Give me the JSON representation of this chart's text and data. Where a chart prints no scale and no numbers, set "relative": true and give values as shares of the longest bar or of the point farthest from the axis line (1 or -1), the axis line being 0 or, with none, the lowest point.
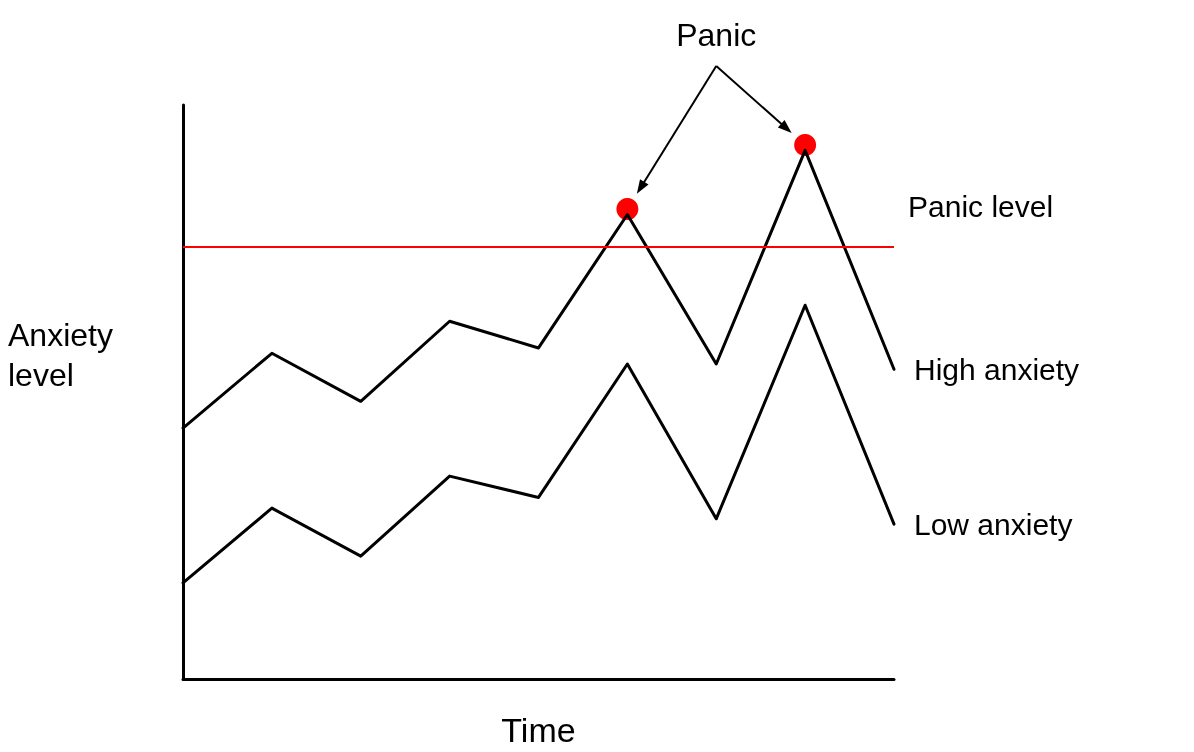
{
  "chart_data": {
    "type": "line",
    "relative": true,
    "xlabel": "Time",
    "ylabel": "Anxiety level",
    "categories": [
      null,
      null,
      null,
      null,
      null,
      null,
      null,
      null,
      null
    ],
    "tick_labels": false,
    "grid": false,
    "legend": false,
    "marker": "none",
    "line_style": "solid",
    "series": [
      {
        "name": "High anxiety",
        "color": "#000000",
        "values": [
          0.47,
          0.61,
          0.52,
          0.67,
          0.62,
          0.87,
          0.59,
          0.99,
          0.58
        ]
      },
      {
        "name": "Low anxiety",
        "color": "#000000",
        "values": [
          0.18,
          0.32,
          0.23,
          0.38,
          0.34,
          0.59,
          0.3,
          0.7,
          0.29
        ]
      },
      {
        "color": "#ff0000",
        "values": [
          null,
          null,
          null,
          null,
          null,
          0.88,
          null,
          1.0,
          null
        ],
        "marker": "circle"
      }
    ],
    "ref_lines": [
      {
        "axis": "y",
        "value": 0.81,
        "label": "Panic level",
        "color": "#ff0000",
        "line_style": "solid"
      }
    ],
    "annotations": [
      "Panic"
    ]
  }
}
